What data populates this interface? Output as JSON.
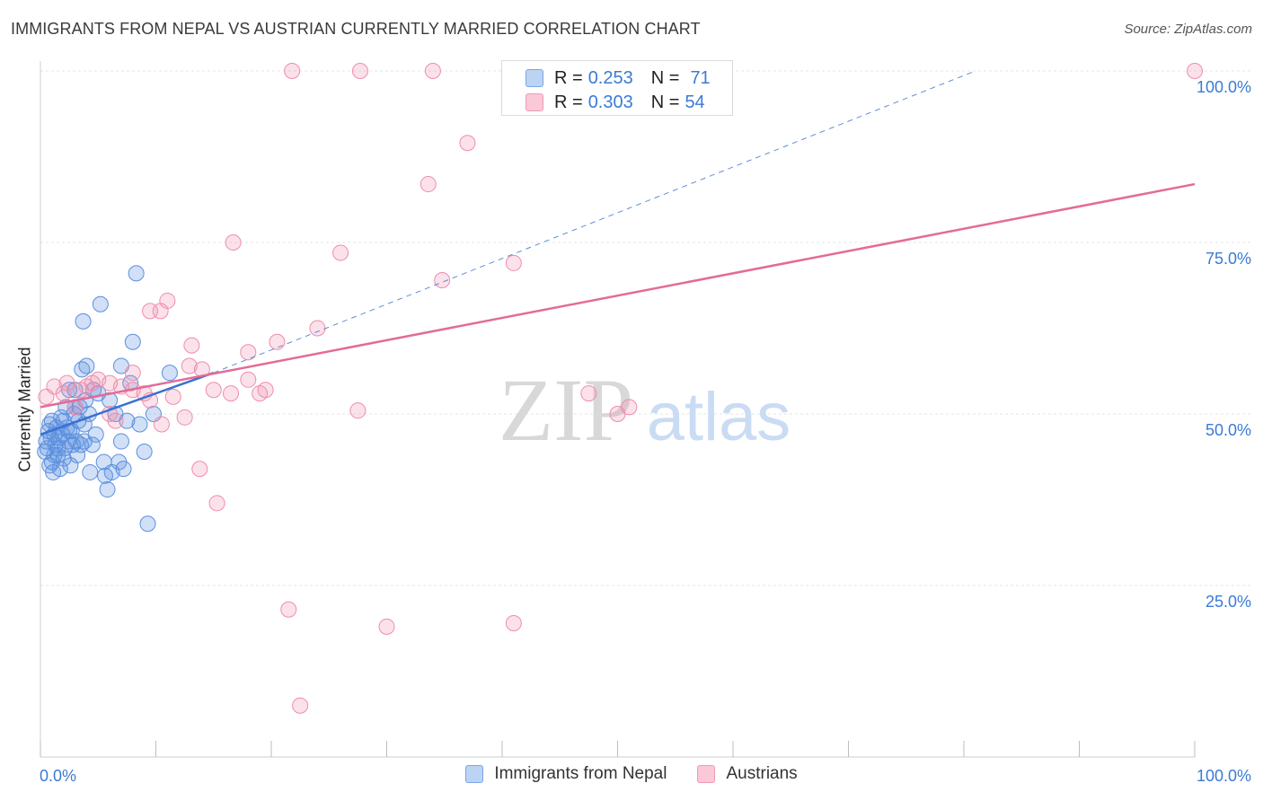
{
  "title": "IMMIGRANTS FROM NEPAL VS AUSTRIAN CURRENTLY MARRIED CORRELATION CHART",
  "source": "Source: ZipAtlas.com",
  "watermark": {
    "zip": "ZIP",
    "atlas": "atlas"
  },
  "legend": {
    "series1": {
      "r_label": "R =",
      "r_value": "0.253",
      "n_label": "N =",
      "n_value": "71"
    },
    "series2": {
      "r_label": "R =",
      "r_value": "0.303",
      "n_label": "N =",
      "n_value": "54"
    }
  },
  "chart_data": {
    "type": "scatter",
    "title": "IMMIGRANTS FROM NEPAL VS AUSTRIAN CURRENTLY MARRIED CORRELATION CHART",
    "xlabel": "",
    "ylabel": "Currently Married",
    "xlim": [
      0,
      100
    ],
    "ylim": [
      0,
      100
    ],
    "x_tick_labels": [
      "0.0%",
      "100.0%"
    ],
    "y_ticks": [
      25,
      50,
      75,
      100
    ],
    "y_tick_labels": [
      "25.0%",
      "50.0%",
      "75.0%",
      "100.0%"
    ],
    "grid": true,
    "legend_position": "top-center",
    "colors": {
      "nepal": "#5b8fe0",
      "austrians": "#f08cac",
      "nepal_line": "#3a70d0",
      "austrians_line": "#e46b95",
      "tick_label": "#3a7bd5"
    },
    "series": [
      {
        "name": "Immigrants from Nepal",
        "r": 0.253,
        "n": 71,
        "trend": {
          "x": [
            0,
            15
          ],
          "y": [
            47.0,
            56.0
          ]
        },
        "trend_extended": {
          "x": [
            15,
            81
          ],
          "y": [
            56.0,
            100.0
          ]
        },
        "points": [
          [
            0.4,
            44.5
          ],
          [
            0.5,
            46.0
          ],
          [
            0.6,
            45.0
          ],
          [
            0.7,
            47.5
          ],
          [
            0.8,
            48.5
          ],
          [
            0.9,
            46.5
          ],
          [
            1.0,
            43.0
          ],
          [
            1.0,
            49.0
          ],
          [
            1.1,
            41.5
          ],
          [
            1.2,
            47.0
          ],
          [
            1.3,
            45.5
          ],
          [
            1.4,
            48.0
          ],
          [
            1.5,
            44.0
          ],
          [
            1.6,
            46.5
          ],
          [
            1.7,
            42.0
          ],
          [
            1.8,
            49.5
          ],
          [
            1.9,
            47.0
          ],
          [
            2.0,
            43.5
          ],
          [
            2.1,
            45.0
          ],
          [
            2.2,
            51.0
          ],
          [
            2.3,
            48.0
          ],
          [
            2.4,
            46.0
          ],
          [
            2.5,
            53.5
          ],
          [
            2.6,
            42.5
          ],
          [
            2.7,
            47.5
          ],
          [
            2.8,
            45.5
          ],
          [
            2.9,
            50.0
          ],
          [
            3.0,
            53.5
          ],
          [
            3.1,
            46.0
          ],
          [
            3.2,
            44.0
          ],
          [
            3.3,
            49.0
          ],
          [
            3.4,
            51.0
          ],
          [
            3.5,
            45.5
          ],
          [
            3.6,
            56.5
          ],
          [
            3.7,
            63.5
          ],
          [
            3.8,
            48.5
          ],
          [
            3.9,
            52.0
          ],
          [
            4.0,
            57.0
          ],
          [
            4.2,
            50.0
          ],
          [
            4.3,
            41.5
          ],
          [
            4.5,
            45.5
          ],
          [
            4.8,
            47.0
          ],
          [
            5.0,
            53.0
          ],
          [
            5.2,
            66.0
          ],
          [
            5.5,
            43.0
          ],
          [
            5.8,
            39.0
          ],
          [
            6.0,
            52.0
          ],
          [
            6.2,
            41.5
          ],
          [
            6.5,
            50.0
          ],
          [
            7.0,
            57.0
          ],
          [
            7.2,
            42.0
          ],
          [
            7.5,
            49.0
          ],
          [
            7.8,
            54.5
          ],
          [
            8.0,
            60.5
          ],
          [
            8.3,
            70.5
          ],
          [
            8.6,
            48.5
          ],
          [
            9.0,
            44.5
          ],
          [
            9.3,
            34.0
          ],
          [
            9.8,
            50.0
          ],
          [
            11.2,
            56.0
          ],
          [
            1.5,
            45.0
          ],
          [
            2.0,
            49.0
          ],
          [
            2.5,
            47.5
          ],
          [
            3.0,
            51.0
          ],
          [
            6.8,
            43.0
          ],
          [
            4.6,
            53.5
          ],
          [
            1.2,
            44.0
          ],
          [
            0.8,
            42.5
          ],
          [
            3.8,
            46.0
          ],
          [
            5.6,
            41.0
          ],
          [
            7.0,
            46.0
          ]
        ]
      },
      {
        "name": "Austrians",
        "r": 0.303,
        "n": 54,
        "trend": {
          "x": [
            0,
            100
          ],
          "y": [
            51.0,
            83.5
          ]
        },
        "points": [
          [
            21.8,
            100.0
          ],
          [
            27.7,
            100.0
          ],
          [
            34.0,
            100.0
          ],
          [
            100.0,
            100.0
          ],
          [
            37.0,
            89.5
          ],
          [
            33.6,
            83.5
          ],
          [
            16.7,
            75.0
          ],
          [
            26.0,
            73.5
          ],
          [
            41.0,
            72.0
          ],
          [
            34.8,
            69.5
          ],
          [
            11.0,
            66.5
          ],
          [
            9.5,
            65.0
          ],
          [
            10.4,
            65.0
          ],
          [
            24.0,
            62.5
          ],
          [
            20.5,
            60.5
          ],
          [
            13.1,
            60.0
          ],
          [
            18.0,
            59.0
          ],
          [
            12.9,
            57.0
          ],
          [
            8.0,
            56.0
          ],
          [
            14.0,
            56.5
          ],
          [
            1.2,
            54.0
          ],
          [
            2.3,
            54.5
          ],
          [
            3.5,
            53.5
          ],
          [
            4.5,
            54.5
          ],
          [
            5.0,
            55.0
          ],
          [
            6.0,
            54.5
          ],
          [
            7.0,
            54.0
          ],
          [
            8.0,
            53.5
          ],
          [
            9.0,
            53.0
          ],
          [
            11.5,
            52.5
          ],
          [
            15.0,
            53.5
          ],
          [
            16.5,
            53.0
          ],
          [
            19.0,
            53.0
          ],
          [
            19.5,
            53.5
          ],
          [
            47.5,
            53.0
          ],
          [
            51.0,
            51.0
          ],
          [
            50.0,
            50.0
          ],
          [
            27.5,
            50.5
          ],
          [
            12.5,
            49.5
          ],
          [
            10.5,
            48.5
          ],
          [
            6.0,
            50.0
          ],
          [
            6.5,
            49.0
          ],
          [
            3.0,
            51.0
          ],
          [
            0.5,
            52.5
          ],
          [
            2.0,
            53.0
          ],
          [
            13.8,
            42.0
          ],
          [
            15.3,
            37.0
          ],
          [
            21.5,
            21.5
          ],
          [
            30.0,
            19.0
          ],
          [
            41.0,
            19.5
          ],
          [
            22.5,
            7.5
          ],
          [
            18.0,
            55.0
          ],
          [
            9.5,
            52.0
          ],
          [
            4.0,
            54.0
          ]
        ]
      }
    ]
  },
  "bottom_legend": {
    "series1_label": "Immigrants from Nepal",
    "series2_label": "Austrians"
  }
}
